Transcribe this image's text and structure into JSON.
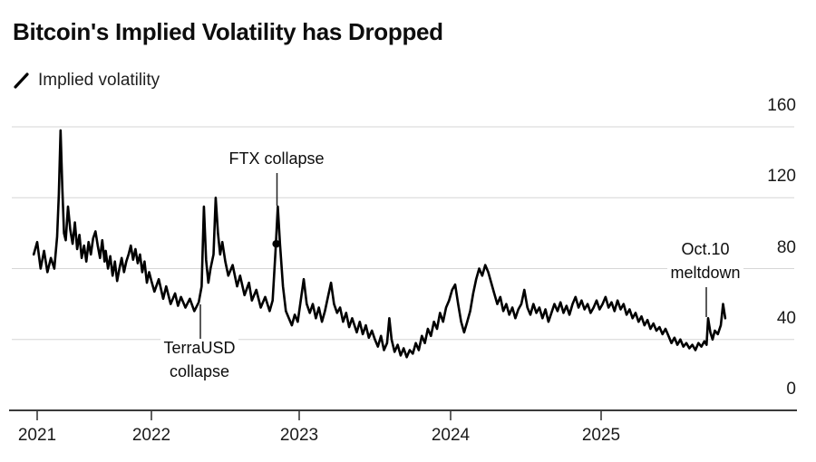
{
  "header": {
    "title": "Bitcoin's Implied Volatility has Dropped"
  },
  "legend": {
    "series_label": "Implied volatility",
    "swatch_icon": "line-slash-icon",
    "line_color": "#000000"
  },
  "colors": {
    "background": "#ffffff",
    "line": "#000000",
    "grid": "#d6d6d6",
    "axis": "#3a3a3a",
    "text": "#1a1a1a"
  },
  "chart_data": {
    "type": "line",
    "title": "Bitcoin's Implied Volatility has Dropped",
    "xlabel": "",
    "ylabel": "",
    "ylim": [
      0,
      160
    ],
    "grid": "horizontal",
    "y_axis_side": "right",
    "legend_position": "top-left",
    "yticks": [
      {
        "value": 160,
        "label": "160"
      },
      {
        "value": 120,
        "label": "120"
      },
      {
        "value": 80,
        "label": "80"
      },
      {
        "value": 40,
        "label": "40"
      },
      {
        "value": 0,
        "label": "0"
      }
    ],
    "xticks": [
      {
        "value": 2021,
        "label": "2021"
      },
      {
        "value": 2022,
        "label": "2022"
      },
      {
        "value": 2023,
        "label": "2023"
      },
      {
        "value": 2024,
        "label": "2024"
      },
      {
        "value": 2025,
        "label": "2025"
      }
    ],
    "annotations": [
      {
        "id": "ftx",
        "lines": [
          "FTX collapse"
        ],
        "target_year": 2022.855,
        "target_value": 115
      },
      {
        "id": "terrausd",
        "lines": [
          "TerraUSD",
          "collapse"
        ],
        "target_year": 2022.355,
        "target_value": 60
      },
      {
        "id": "oct10",
        "lines": [
          "Oct.10",
          "meltdown"
        ],
        "target_year": 2025.715,
        "target_value": 52
      }
    ],
    "marker_point": {
      "year": 2022.845,
      "value": 94
    },
    "series": [
      {
        "name": "Implied volatility",
        "color": "#000000",
        "points": [
          [
            2020.97,
            88
          ],
          [
            2021.0,
            95
          ],
          [
            2021.03,
            80
          ],
          [
            2021.06,
            90
          ],
          [
            2021.09,
            78
          ],
          [
            2021.12,
            86
          ],
          [
            2021.15,
            80
          ],
          [
            2021.175,
            98
          ],
          [
            2021.19,
            122
          ],
          [
            2021.205,
            158
          ],
          [
            2021.22,
            126
          ],
          [
            2021.235,
            100
          ],
          [
            2021.25,
            96
          ],
          [
            2021.27,
            115
          ],
          [
            2021.29,
            102
          ],
          [
            2021.31,
            94
          ],
          [
            2021.33,
            106
          ],
          [
            2021.35,
            91
          ],
          [
            2021.37,
            99
          ],
          [
            2021.39,
            86
          ],
          [
            2021.41,
            93
          ],
          [
            2021.43,
            84
          ],
          [
            2021.45,
            95
          ],
          [
            2021.47,
            88
          ],
          [
            2021.49,
            97
          ],
          [
            2021.51,
            101
          ],
          [
            2021.53,
            93
          ],
          [
            2021.55,
            86
          ],
          [
            2021.57,
            96
          ],
          [
            2021.59,
            84
          ],
          [
            2021.6,
            90
          ],
          [
            2021.62,
            80
          ],
          [
            2021.64,
            87
          ],
          [
            2021.66,
            76
          ],
          [
            2021.68,
            84
          ],
          [
            2021.7,
            73
          ],
          [
            2021.72,
            80
          ],
          [
            2021.74,
            86
          ],
          [
            2021.76,
            78
          ],
          [
            2021.78,
            84
          ],
          [
            2021.8,
            88
          ],
          [
            2021.82,
            93
          ],
          [
            2021.84,
            85
          ],
          [
            2021.86,
            91
          ],
          [
            2021.88,
            83
          ],
          [
            2021.9,
            88
          ],
          [
            2021.92,
            78
          ],
          [
            2021.94,
            84
          ],
          [
            2021.96,
            72
          ],
          [
            2021.98,
            78
          ],
          [
            2022.0,
            73
          ],
          [
            2022.02,
            67
          ],
          [
            2022.05,
            74
          ],
          [
            2022.08,
            63
          ],
          [
            2022.1,
            70
          ],
          [
            2022.13,
            60
          ],
          [
            2022.16,
            66
          ],
          [
            2022.18,
            59
          ],
          [
            2022.2,
            64
          ],
          [
            2022.23,
            58
          ],
          [
            2022.26,
            63
          ],
          [
            2022.29,
            56
          ],
          [
            2022.32,
            61
          ],
          [
            2022.34,
            70
          ],
          [
            2022.355,
            115
          ],
          [
            2022.37,
            85
          ],
          [
            2022.385,
            72
          ],
          [
            2022.4,
            80
          ],
          [
            2022.42,
            88
          ],
          [
            2022.435,
            120
          ],
          [
            2022.45,
            100
          ],
          [
            2022.465,
            88
          ],
          [
            2022.48,
            95
          ],
          [
            2022.5,
            84
          ],
          [
            2022.52,
            76
          ],
          [
            2022.55,
            82
          ],
          [
            2022.58,
            70
          ],
          [
            2022.6,
            76
          ],
          [
            2022.63,
            65
          ],
          [
            2022.66,
            72
          ],
          [
            2022.68,
            62
          ],
          [
            2022.71,
            68
          ],
          [
            2022.74,
            58
          ],
          [
            2022.77,
            64
          ],
          [
            2022.8,
            56
          ],
          [
            2022.82,
            62
          ],
          [
            2022.84,
            90
          ],
          [
            2022.855,
            115
          ],
          [
            2022.87,
            94
          ],
          [
            2022.89,
            70
          ],
          [
            2022.91,
            56
          ],
          [
            2022.93,
            52
          ],
          [
            2022.95,
            48
          ],
          [
            2022.97,
            54
          ],
          [
            2022.99,
            50
          ],
          [
            2023.01,
            62
          ],
          [
            2023.03,
            74
          ],
          [
            2023.05,
            60
          ],
          [
            2023.07,
            55
          ],
          [
            2023.09,
            60
          ],
          [
            2023.11,
            52
          ],
          [
            2023.13,
            58
          ],
          [
            2023.15,
            50
          ],
          [
            2023.17,
            56
          ],
          [
            2023.19,
            64
          ],
          [
            2023.21,
            72
          ],
          [
            2023.23,
            60
          ],
          [
            2023.25,
            55
          ],
          [
            2023.27,
            58
          ],
          [
            2023.29,
            50
          ],
          [
            2023.31,
            55
          ],
          [
            2023.33,
            47
          ],
          [
            2023.35,
            52
          ],
          [
            2023.38,
            44
          ],
          [
            2023.4,
            50
          ],
          [
            2023.42,
            43
          ],
          [
            2023.44,
            48
          ],
          [
            2023.46,
            41
          ],
          [
            2023.48,
            45
          ],
          [
            2023.5,
            40
          ],
          [
            2023.52,
            36
          ],
          [
            2023.54,
            42
          ],
          [
            2023.56,
            34
          ],
          [
            2023.58,
            38
          ],
          [
            2023.595,
            52
          ],
          [
            2023.61,
            40
          ],
          [
            2023.63,
            33
          ],
          [
            2023.65,
            37
          ],
          [
            2023.67,
            31
          ],
          [
            2023.69,
            35
          ],
          [
            2023.71,
            30
          ],
          [
            2023.73,
            34
          ],
          [
            2023.75,
            32
          ],
          [
            2023.77,
            38
          ],
          [
            2023.79,
            34
          ],
          [
            2023.81,
            42
          ],
          [
            2023.83,
            38
          ],
          [
            2023.85,
            46
          ],
          [
            2023.87,
            42
          ],
          [
            2023.89,
            50
          ],
          [
            2023.91,
            46
          ],
          [
            2023.93,
            55
          ],
          [
            2023.95,
            50
          ],
          [
            2023.97,
            58
          ],
          [
            2023.99,
            62
          ],
          [
            2024.01,
            68
          ],
          [
            2024.03,
            71
          ],
          [
            2024.05,
            60
          ],
          [
            2024.07,
            50
          ],
          [
            2024.09,
            44
          ],
          [
            2024.11,
            50
          ],
          [
            2024.13,
            56
          ],
          [
            2024.15,
            66
          ],
          [
            2024.17,
            74
          ],
          [
            2024.19,
            80
          ],
          [
            2024.21,
            76
          ],
          [
            2024.23,
            82
          ],
          [
            2024.25,
            78
          ],
          [
            2024.27,
            72
          ],
          [
            2024.29,
            66
          ],
          [
            2024.31,
            60
          ],
          [
            2024.33,
            64
          ],
          [
            2024.35,
            56
          ],
          [
            2024.37,
            60
          ],
          [
            2024.39,
            54
          ],
          [
            2024.41,
            58
          ],
          [
            2024.43,
            52
          ],
          [
            2024.45,
            57
          ],
          [
            2024.47,
            60
          ],
          [
            2024.49,
            68
          ],
          [
            2024.51,
            58
          ],
          [
            2024.53,
            54
          ],
          [
            2024.55,
            60
          ],
          [
            2024.57,
            55
          ],
          [
            2024.59,
            58
          ],
          [
            2024.61,
            52
          ],
          [
            2024.63,
            57
          ],
          [
            2024.65,
            50
          ],
          [
            2024.67,
            55
          ],
          [
            2024.69,
            60
          ],
          [
            2024.71,
            56
          ],
          [
            2024.73,
            61
          ],
          [
            2024.75,
            55
          ],
          [
            2024.77,
            59
          ],
          [
            2024.79,
            54
          ],
          [
            2024.81,
            60
          ],
          [
            2024.83,
            64
          ],
          [
            2024.85,
            58
          ],
          [
            2024.87,
            62
          ],
          [
            2024.89,
            57
          ],
          [
            2024.91,
            60
          ],
          [
            2024.93,
            55
          ],
          [
            2024.95,
            58
          ],
          [
            2024.97,
            62
          ],
          [
            2024.99,
            57
          ],
          [
            2025.01,
            60
          ],
          [
            2025.03,
            64
          ],
          [
            2025.05,
            58
          ],
          [
            2025.07,
            61
          ],
          [
            2025.09,
            56
          ],
          [
            2025.11,
            62
          ],
          [
            2025.13,
            57
          ],
          [
            2025.15,
            60
          ],
          [
            2025.17,
            54
          ],
          [
            2025.19,
            57
          ],
          [
            2025.21,
            52
          ],
          [
            2025.23,
            55
          ],
          [
            2025.25,
            50
          ],
          [
            2025.27,
            53
          ],
          [
            2025.29,
            48
          ],
          [
            2025.31,
            51
          ],
          [
            2025.33,
            46
          ],
          [
            2025.35,
            49
          ],
          [
            2025.37,
            45
          ],
          [
            2025.39,
            47
          ],
          [
            2025.41,
            43
          ],
          [
            2025.43,
            46
          ],
          [
            2025.45,
            42
          ],
          [
            2025.47,
            38
          ],
          [
            2025.49,
            41
          ],
          [
            2025.51,
            37
          ],
          [
            2025.53,
            40
          ],
          [
            2025.55,
            36
          ],
          [
            2025.57,
            38
          ],
          [
            2025.59,
            35
          ],
          [
            2025.61,
            37
          ],
          [
            2025.63,
            34
          ],
          [
            2025.65,
            38
          ],
          [
            2025.67,
            36
          ],
          [
            2025.69,
            39
          ],
          [
            2025.705,
            37
          ],
          [
            2025.715,
            52
          ],
          [
            2025.73,
            44
          ],
          [
            2025.745,
            40
          ],
          [
            2025.76,
            45
          ],
          [
            2025.78,
            43
          ],
          [
            2025.8,
            48
          ],
          [
            2025.815,
            60
          ],
          [
            2025.83,
            52
          ]
        ]
      }
    ]
  }
}
